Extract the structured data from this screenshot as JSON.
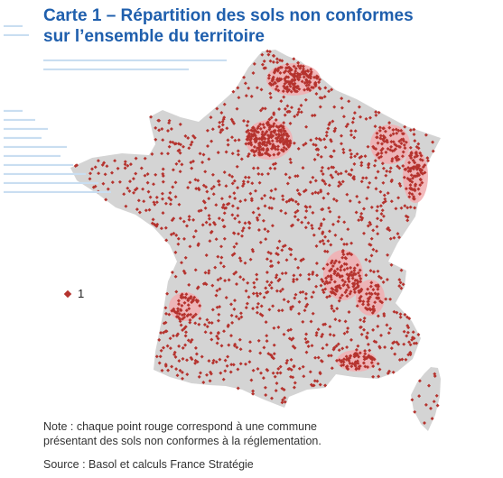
{
  "title": {
    "line1": "Carte 1 – Répartition des sols non conformes",
    "line2": "sur l’ensemble du territoire"
  },
  "legend": {
    "value": "1"
  },
  "note": {
    "line1": "Note : chaque point rouge correspond à une commune",
    "line2": "présentant des sols non conformes à la réglementation."
  },
  "source": "Source : Basol et calculs France Stratégie",
  "colors": {
    "title": "#1f5fad",
    "land": "#d4d4d4",
    "hotspot": "#f2aeb1",
    "point": "#b5332e"
  }
}
